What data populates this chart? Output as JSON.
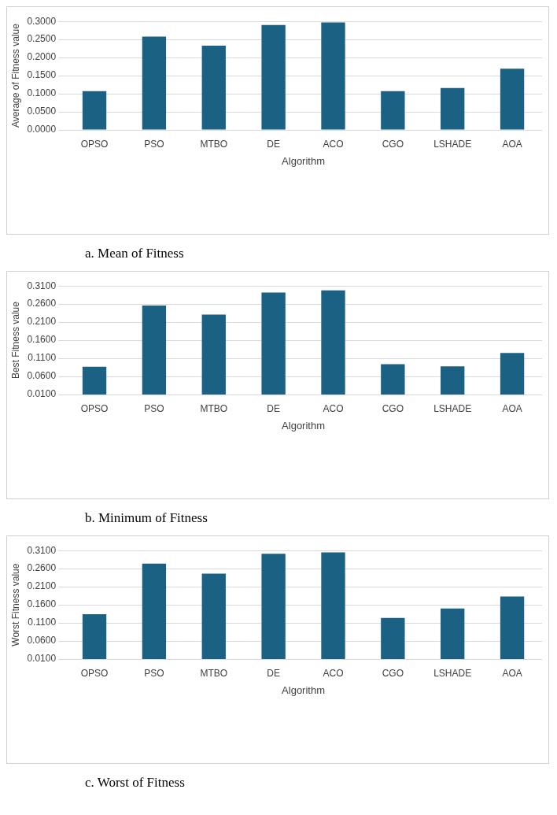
{
  "chart_data": [
    {
      "type": "bar",
      "categories": [
        "OPSO",
        "PSO",
        "MTBO",
        "DE",
        "ACO",
        "CGO",
        "LSHADE",
        "AOA"
      ],
      "values": [
        0.107,
        0.258,
        0.233,
        0.29,
        0.297,
        0.107,
        0.116,
        0.169
      ],
      "color": "#1a6183",
      "xlabel": "Algorithm",
      "ylabel": "Average of Fitness value",
      "ylim": [
        0,
        0.3
      ],
      "yticks": [
        {
          "value": 0,
          "label": "0.0000"
        },
        {
          "value": 0.05,
          "label": "0.0500"
        },
        {
          "value": 0.1,
          "label": "0.1000"
        },
        {
          "value": 0.15,
          "label": "0.1500"
        },
        {
          "value": 0.2,
          "label": "0.2000"
        },
        {
          "value": 0.25,
          "label": "0.2500"
        },
        {
          "value": 0.3,
          "label": "0.3000"
        }
      ],
      "grid": "y",
      "annotations": [
        "a.  Mean of Fitness"
      ]
    },
    {
      "type": "bar",
      "categories": [
        "OPSO",
        "PSO",
        "MTBO",
        "DE",
        "ACO",
        "CGO",
        "LSHADE",
        "AOA"
      ],
      "values": [
        0.087,
        0.256,
        0.231,
        0.292,
        0.298,
        0.094,
        0.088,
        0.125
      ],
      "color": "#1a6183",
      "xlabel": "Algorithm",
      "ylabel": "Best Fitness value",
      "ylim": [
        0.01,
        0.31
      ],
      "yticks": [
        {
          "value": 0.01,
          "label": "0.0100"
        },
        {
          "value": 0.06,
          "label": "0.0600"
        },
        {
          "value": 0.11,
          "label": "0.1100"
        },
        {
          "value": 0.16,
          "label": "0.1600"
        },
        {
          "value": 0.21,
          "label": "0.2100"
        },
        {
          "value": 0.26,
          "label": "0.2600"
        },
        {
          "value": 0.31,
          "label": "0.3100"
        }
      ],
      "grid": "y",
      "annotations": [
        "b.  Minimum of Fitness"
      ]
    },
    {
      "type": "bar",
      "categories": [
        "OPSO",
        "PSO",
        "MTBO",
        "DE",
        "ACO",
        "CGO",
        "LSHADE",
        "AOA"
      ],
      "values": [
        0.134,
        0.274,
        0.246,
        0.301,
        0.305,
        0.124,
        0.15,
        0.183
      ],
      "color": "#1a6183",
      "xlabel": "Algorithm",
      "ylabel": "Worst Fitness value",
      "ylim": [
        0.01,
        0.31
      ],
      "yticks": [
        {
          "value": 0.01,
          "label": "0.0100"
        },
        {
          "value": 0.06,
          "label": "0.0600"
        },
        {
          "value": 0.11,
          "label": "0.1100"
        },
        {
          "value": 0.16,
          "label": "0.1600"
        },
        {
          "value": 0.21,
          "label": "0.2100"
        },
        {
          "value": 0.26,
          "label": "0.2600"
        },
        {
          "value": 0.31,
          "label": "0.3100"
        }
      ],
      "grid": "y",
      "annotations": [
        "c.  Worst of Fitness"
      ]
    }
  ]
}
